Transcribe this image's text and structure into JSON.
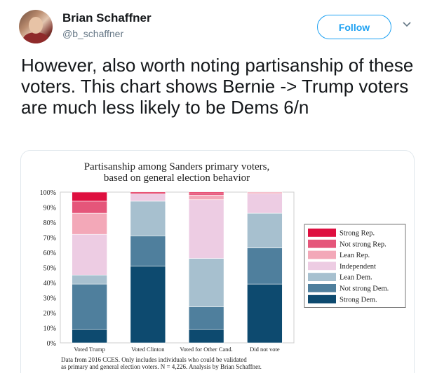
{
  "author": {
    "name": "Brian Schaffner",
    "handle": "@b_schaffner"
  },
  "follow_label": "Follow",
  "tweet_text": "However, also worth noting partisanship of these voters. This chart shows Bernie -> Trump voters are much less likely to be Dems 6/n",
  "icons": {
    "more": "chevron-down-icon",
    "avatar": "profile-photo"
  },
  "chart_data": {
    "type": "bar",
    "stacked": true,
    "title": "Partisanship among Sanders primary voters,",
    "subtitle": "based on general election behavior",
    "categories": [
      "Voted Trump",
      "Voted Clinton",
      "Voted for Other Cand.",
      "Did not vote"
    ],
    "ylim": [
      0,
      100
    ],
    "y_ticks": [
      "0%",
      "10%",
      "20%",
      "30%",
      "40%",
      "50%",
      "60%",
      "70%",
      "80%",
      "90%",
      "100%"
    ],
    "series": [
      {
        "name": "Strong Dem.",
        "color": "#0d4a6f",
        "values": [
          9,
          51,
          9,
          39
        ]
      },
      {
        "name": "Not strong Dem.",
        "color": "#4f7f9d",
        "values": [
          30,
          20,
          15,
          24
        ]
      },
      {
        "name": "Lean Dem.",
        "color": "#a7c0cf",
        "values": [
          6,
          23,
          32,
          23
        ]
      },
      {
        "name": "Independent",
        "color": "#edcce3",
        "values": [
          27,
          5,
          39,
          13
        ]
      },
      {
        "name": "Lean Rep.",
        "color": "#f3a8b8",
        "values": [
          14,
          0,
          3,
          1
        ]
      },
      {
        "name": "Not strong Rep.",
        "color": "#e5567a",
        "values": [
          8,
          0,
          1,
          0
        ]
      },
      {
        "name": "Strong Rep.",
        "color": "#de0f3f",
        "values": [
          6,
          1,
          1,
          0
        ]
      }
    ],
    "legend_order": [
      "Strong Rep.",
      "Not strong Rep.",
      "Lean Rep.",
      "Independent",
      "Lean Dem.",
      "Not strong Dem.",
      "Strong Dem."
    ],
    "legend_position": "right",
    "note_lines": [
      "Data from 2016 CCES. Only includes individuals who could be validated",
      "as primary and general election voters. N = 4,226. Analysis by Brian Schaffner."
    ]
  }
}
